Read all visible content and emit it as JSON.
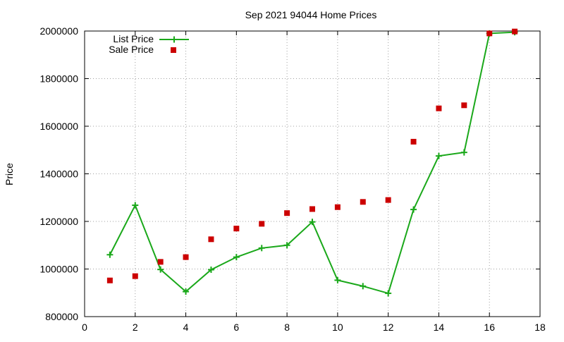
{
  "chart_data": {
    "type": "line",
    "title": "Sep 2021 94044 Home Prices",
    "xlabel": "",
    "ylabel": "Price",
    "xlim": [
      0,
      18
    ],
    "ylim": [
      800000,
      2000000
    ],
    "x_ticks": [
      0,
      2,
      4,
      6,
      8,
      10,
      12,
      14,
      16,
      18
    ],
    "y_ticks": [
      800000,
      1000000,
      1200000,
      1400000,
      1600000,
      1800000,
      2000000
    ],
    "grid": true,
    "legend_position": "top-left",
    "series": [
      {
        "name": "List Price",
        "style": "line-points",
        "marker": "plus",
        "color": "#1aa81a",
        "x": [
          1,
          2,
          3,
          4,
          5,
          6,
          7,
          8,
          9,
          10,
          11,
          12,
          13,
          14,
          15,
          16,
          17
        ],
        "values": [
          1060000,
          1268000,
          998000,
          905000,
          997000,
          1050000,
          1088000,
          1100000,
          1198000,
          953000,
          928000,
          898000,
          1250000,
          1475000,
          1490000,
          1990000,
          1995000
        ]
      },
      {
        "name": "Sale Price",
        "style": "points",
        "marker": "square",
        "color": "#cc0000",
        "x": [
          1,
          2,
          3,
          4,
          5,
          6,
          7,
          8,
          9,
          10,
          11,
          12,
          13,
          14,
          15,
          16,
          17
        ],
        "values": [
          952000,
          970000,
          1030000,
          1050000,
          1125000,
          1170000,
          1190000,
          1235000,
          1252000,
          1260000,
          1282000,
          1290000,
          1535000,
          1675000,
          1688000,
          1990000,
          1998000
        ]
      }
    ]
  }
}
